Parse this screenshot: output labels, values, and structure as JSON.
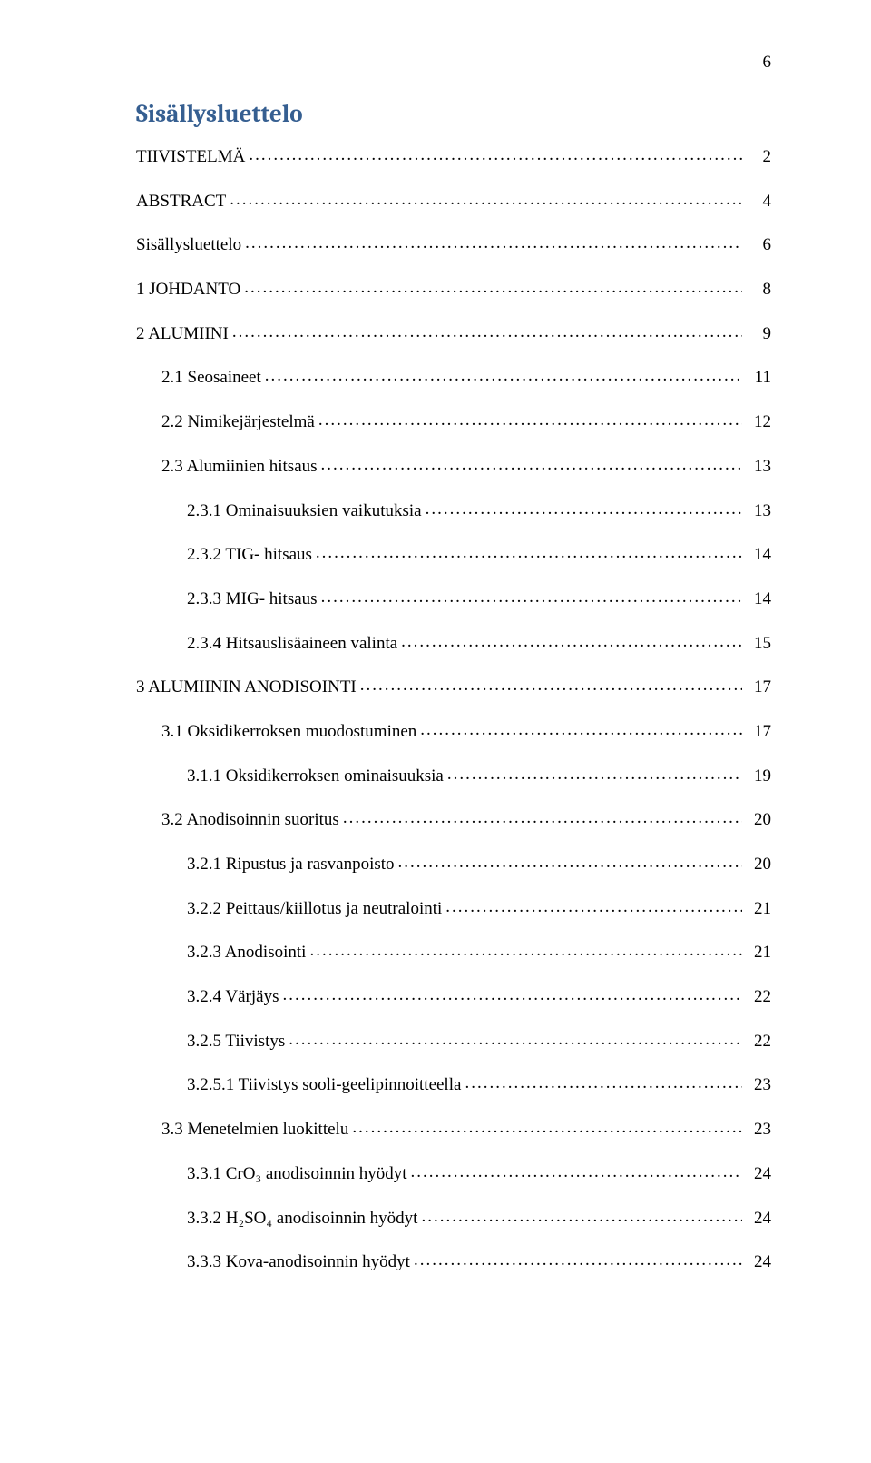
{
  "page_number": "6",
  "title": "Sisällysluettelo",
  "colors": {
    "title": "#365f91",
    "text": "#000000",
    "background": "#ffffff"
  },
  "typography": {
    "title_fontsize_pt": 20,
    "body_fontsize_pt": 14,
    "title_font": "Cambria",
    "body_font": "Times New Roman"
  },
  "toc": [
    {
      "level": 0,
      "label": "TIIVISTELMÄ",
      "page": "2"
    },
    {
      "level": 0,
      "label": "ABSTRACT",
      "page": "4"
    },
    {
      "level": 0,
      "label": "Sisällysluettelo",
      "page": "6"
    },
    {
      "level": 0,
      "label": "1 JOHDANTO",
      "page": "8"
    },
    {
      "level": 0,
      "label": "2 ALUMIINI",
      "page": "9"
    },
    {
      "level": 1,
      "label": "2.1 Seosaineet",
      "page": "11"
    },
    {
      "level": 1,
      "label": "2.2 Nimikejärjestelmä",
      "page": "12"
    },
    {
      "level": 1,
      "label": "2.3 Alumiinien hitsaus",
      "page": "13"
    },
    {
      "level": 2,
      "label": "2.3.1 Ominaisuuksien vaikutuksia",
      "page": "13"
    },
    {
      "level": 2,
      "label": "2.3.2 TIG- hitsaus",
      "page": "14"
    },
    {
      "level": 2,
      "label": "2.3.3 MIG- hitsaus",
      "page": "14"
    },
    {
      "level": 2,
      "label": "2.3.4 Hitsauslisäaineen valinta",
      "page": "15"
    },
    {
      "level": 0,
      "label": "3 ALUMIININ ANODISOINTI",
      "page": "17"
    },
    {
      "level": 1,
      "label": "3.1 Oksidikerroksen muodostuminen",
      "page": "17"
    },
    {
      "level": 2,
      "label": "3.1.1 Oksidikerroksen ominaisuuksia",
      "page": "19"
    },
    {
      "level": 1,
      "label": "3.2 Anodisoinnin suoritus",
      "page": "20"
    },
    {
      "level": 2,
      "label": "3.2.1 Ripustus ja rasvanpoisto",
      "page": "20"
    },
    {
      "level": 2,
      "label": "3.2.2 Peittaus/kiillotus ja neutralointi",
      "page": "21"
    },
    {
      "level": 2,
      "label": "3.2.3 Anodisointi",
      "page": "21"
    },
    {
      "level": 2,
      "label": "3.2.4 Värjäys",
      "page": "22"
    },
    {
      "level": 2,
      "label": "3.2.5 Tiivistys",
      "page": "22"
    },
    {
      "level": 2,
      "label": "3.2.5.1 Tiivistys sooli-geelipinnoitteella",
      "page": "23"
    },
    {
      "level": 1,
      "label": "3.3 Menetelmien luokittelu",
      "page": "23"
    },
    {
      "level": 2,
      "label": "3.3.1 CrO₃ anodisoinnin hyödyt",
      "page": "24"
    },
    {
      "level": 2,
      "label": "3.3.2 H₂SO₄ anodisoinnin hyödyt",
      "page": "24"
    },
    {
      "level": 2,
      "label": "3.3.3 Kova-anodisoinnin hyödyt",
      "page": "24"
    }
  ]
}
